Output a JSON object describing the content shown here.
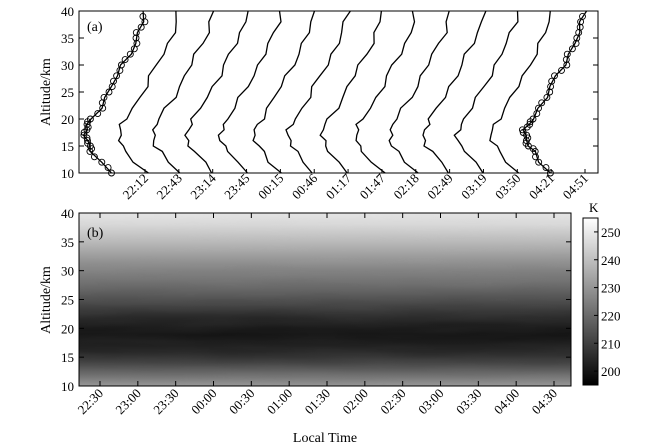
{
  "chart_data": [
    {
      "type": "line",
      "panel_label": "(a)",
      "ylabel": "Altitude/km",
      "ylim": [
        10,
        40
      ],
      "yticks": [
        10,
        15,
        20,
        25,
        30,
        35,
        40
      ],
      "time_labels": [
        "22:12",
        "22:43",
        "23:14",
        "23:45",
        "00:15",
        "00:46",
        "01:17",
        "01:47",
        "02:18",
        "02:49",
        "03:19",
        "03:50",
        "04:21",
        "04:51"
      ],
      "profile_altitudes_km": [
        10,
        12,
        14,
        15,
        16,
        17,
        18,
        19,
        20,
        22,
        24,
        26,
        28,
        30,
        32,
        34,
        36,
        38,
        40
      ],
      "profile_temperature_K": [
        218,
        209,
        202,
        198,
        196,
        195,
        196,
        198,
        201,
        207,
        213,
        218,
        223,
        228,
        233,
        238,
        242,
        245,
        247
      ],
      "markers": "circles on first and last profiles"
    },
    {
      "type": "heatmap",
      "panel_label": "(b)",
      "ylabel": "Altitude/km",
      "xlabel": "Local Time",
      "ylim": [
        10,
        40
      ],
      "yticks": [
        10,
        15,
        20,
        25,
        30,
        35,
        40
      ],
      "xticks": [
        "22:30",
        "23:00",
        "23:30",
        "00:00",
        "00:30",
        "01:00",
        "01:30",
        "02:00",
        "02:30",
        "03:00",
        "03:30",
        "04:00",
        "04:30"
      ],
      "colorbar": {
        "unit": "K",
        "range": [
          195,
          255
        ],
        "ticks": [
          200,
          210,
          220,
          230,
          240,
          250
        ],
        "colormap": "gray"
      },
      "altitude_km": [
        10,
        12,
        14,
        15,
        16,
        17,
        18,
        19,
        20,
        22,
        24,
        26,
        28,
        30,
        32,
        34,
        36,
        38,
        40
      ],
      "temperature_K": [
        230,
        220,
        210,
        206,
        203,
        201,
        200,
        199,
        200,
        204,
        210,
        216,
        221,
        225,
        230,
        236,
        241,
        246,
        249
      ]
    }
  ]
}
